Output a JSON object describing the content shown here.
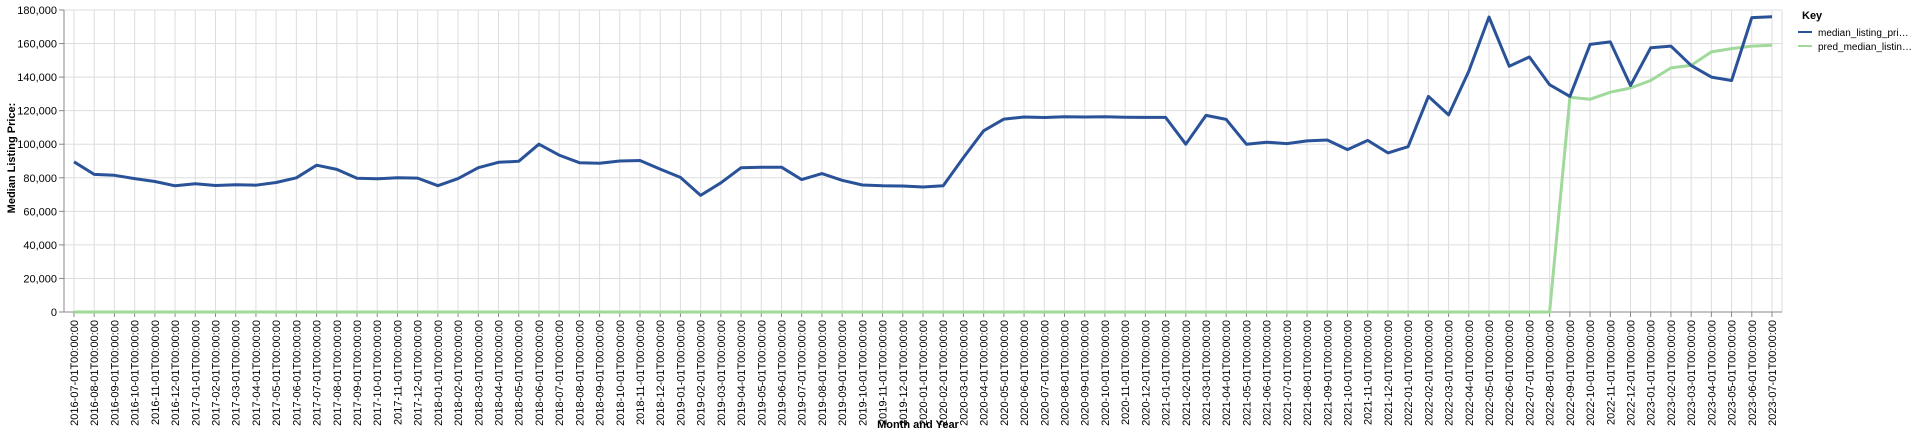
{
  "chart_data": {
    "type": "line",
    "xlabel": "Month and Year",
    "ylabel": "Median Listing Price:",
    "ylim": [
      0,
      180000
    ],
    "y_ticks": [
      0,
      20000,
      40000,
      60000,
      80000,
      100000,
      120000,
      140000,
      160000,
      180000
    ],
    "y_tick_labels": [
      "0",
      "20,000",
      "40,000",
      "60,000",
      "80,000",
      "100,000",
      "120,000",
      "140,000",
      "160,000",
      "180,000"
    ],
    "grid": true,
    "legend": {
      "title": "Key",
      "placement": "top-right",
      "entries": [
        {
          "label": "median_listing_pri…",
          "color": "#2a5298"
        },
        {
          "label": "pred_median_listin…",
          "color": "#a1d99b"
        }
      ]
    },
    "x": [
      "2016-07-01T00:00:00",
      "2016-08-01T00:00:00",
      "2016-09-01T00:00:00",
      "2016-10-01T00:00:00",
      "2016-11-01T00:00:00",
      "2016-12-01T00:00:00",
      "2017-01-01T00:00:00",
      "2017-02-01T00:00:00",
      "2017-03-01T00:00:00",
      "2017-04-01T00:00:00",
      "2017-05-01T00:00:00",
      "2017-06-01T00:00:00",
      "2017-07-01T00:00:00",
      "2017-08-01T00:00:00",
      "2017-09-01T00:00:00",
      "2017-10-01T00:00:00",
      "2017-11-01T00:00:00",
      "2017-12-01T00:00:00",
      "2018-01-01T00:00:00",
      "2018-02-01T00:00:00",
      "2018-03-01T00:00:00",
      "2018-04-01T00:00:00",
      "2018-05-01T00:00:00",
      "2018-06-01T00:00:00",
      "2018-07-01T00:00:00",
      "2018-08-01T00:00:00",
      "2018-09-01T00:00:00",
      "2018-10-01T00:00:00",
      "2018-11-01T00:00:00",
      "2018-12-01T00:00:00",
      "2019-01-01T00:00:00",
      "2019-02-01T00:00:00",
      "2019-03-01T00:00:00",
      "2019-04-01T00:00:00",
      "2019-05-01T00:00:00",
      "2019-06-01T00:00:00",
      "2019-07-01T00:00:00",
      "2019-08-01T00:00:00",
      "2019-09-01T00:00:00",
      "2019-10-01T00:00:00",
      "2019-11-01T00:00:00",
      "2019-12-01T00:00:00",
      "2020-01-01T00:00:00",
      "2020-02-01T00:00:00",
      "2020-03-01T00:00:00",
      "2020-04-01T00:00:00",
      "2020-05-01T00:00:00",
      "2020-06-01T00:00:00",
      "2020-07-01T00:00:00",
      "2020-08-01T00:00:00",
      "2020-09-01T00:00:00",
      "2020-10-01T00:00:00",
      "2020-11-01T00:00:00",
      "2020-12-01T00:00:00",
      "2021-01-01T00:00:00",
      "2021-02-01T00:00:00",
      "2021-03-01T00:00:00",
      "2021-04-01T00:00:00",
      "2021-05-01T00:00:00",
      "2021-06-01T00:00:00",
      "2021-07-01T00:00:00",
      "2021-08-01T00:00:00",
      "2021-09-01T00:00:00",
      "2021-10-01T00:00:00",
      "2021-11-01T00:00:00",
      "2021-12-01T00:00:00",
      "2022-01-01T00:00:00",
      "2022-02-01T00:00:00",
      "2022-03-01T00:00:00",
      "2022-04-01T00:00:00",
      "2022-05-01T00:00:00",
      "2022-06-01T00:00:00",
      "2022-07-01T00:00:00",
      "2022-08-01T00:00:00",
      "2022-09-01T00:00:00",
      "2022-10-01T00:00:00",
      "2022-11-01T00:00:00",
      "2022-12-01T00:00:00",
      "2023-01-01T00:00:00",
      "2023-02-01T00:00:00",
      "2023-03-01T00:00:00",
      "2023-04-01T00:00:00",
      "2023-05-01T00:00:00",
      "2023-06-01T00:00:00",
      "2023-07-01T00:00:00"
    ],
    "series": [
      {
        "name": "median_listing_pri…",
        "color": "#2a5298",
        "values": [
          89500,
          82000,
          81500,
          79500,
          77800,
          75200,
          76400,
          75400,
          75900,
          75600,
          77200,
          80000,
          87500,
          85000,
          79700,
          79400,
          80000,
          79800,
          75300,
          79500,
          86000,
          89200,
          89800,
          100000,
          93500,
          89000,
          88600,
          90000,
          90300,
          85200,
          80200,
          69500,
          77000,
          86000,
          86300,
          86300,
          78900,
          82500,
          78500,
          75700,
          75200,
          75100,
          74500,
          75200,
          92000,
          108000,
          115000,
          116200,
          115900,
          116400,
          116200,
          116400,
          116100,
          116000,
          116000,
          100000,
          117200,
          114800,
          100000,
          101200,
          100400,
          102000,
          102500,
          96800,
          102300,
          94800,
          98500,
          128500,
          117500,
          143500,
          175800,
          146500,
          152000,
          135500,
          128500,
          159500,
          161000,
          135000,
          157500,
          158500,
          147000,
          140000,
          138000,
          175500,
          176000
        ]
      },
      {
        "name": "pred_median_listin…",
        "color": "#a1d99b",
        "values": [
          0,
          0,
          0,
          0,
          0,
          0,
          0,
          0,
          0,
          0,
          0,
          0,
          0,
          0,
          0,
          0,
          0,
          0,
          0,
          0,
          0,
          0,
          0,
          0,
          0,
          0,
          0,
          0,
          0,
          0,
          0,
          0,
          0,
          0,
          0,
          0,
          0,
          0,
          0,
          0,
          0,
          0,
          0,
          0,
          0,
          0,
          0,
          0,
          0,
          0,
          0,
          0,
          0,
          0,
          0,
          0,
          0,
          0,
          0,
          0,
          0,
          0,
          0,
          0,
          0,
          0,
          0,
          0,
          0,
          0,
          0,
          0,
          0,
          0,
          128000,
          126800,
          131000,
          133500,
          138000,
          145500,
          147000,
          155000,
          157000,
          158500,
          159000
        ]
      }
    ]
  }
}
